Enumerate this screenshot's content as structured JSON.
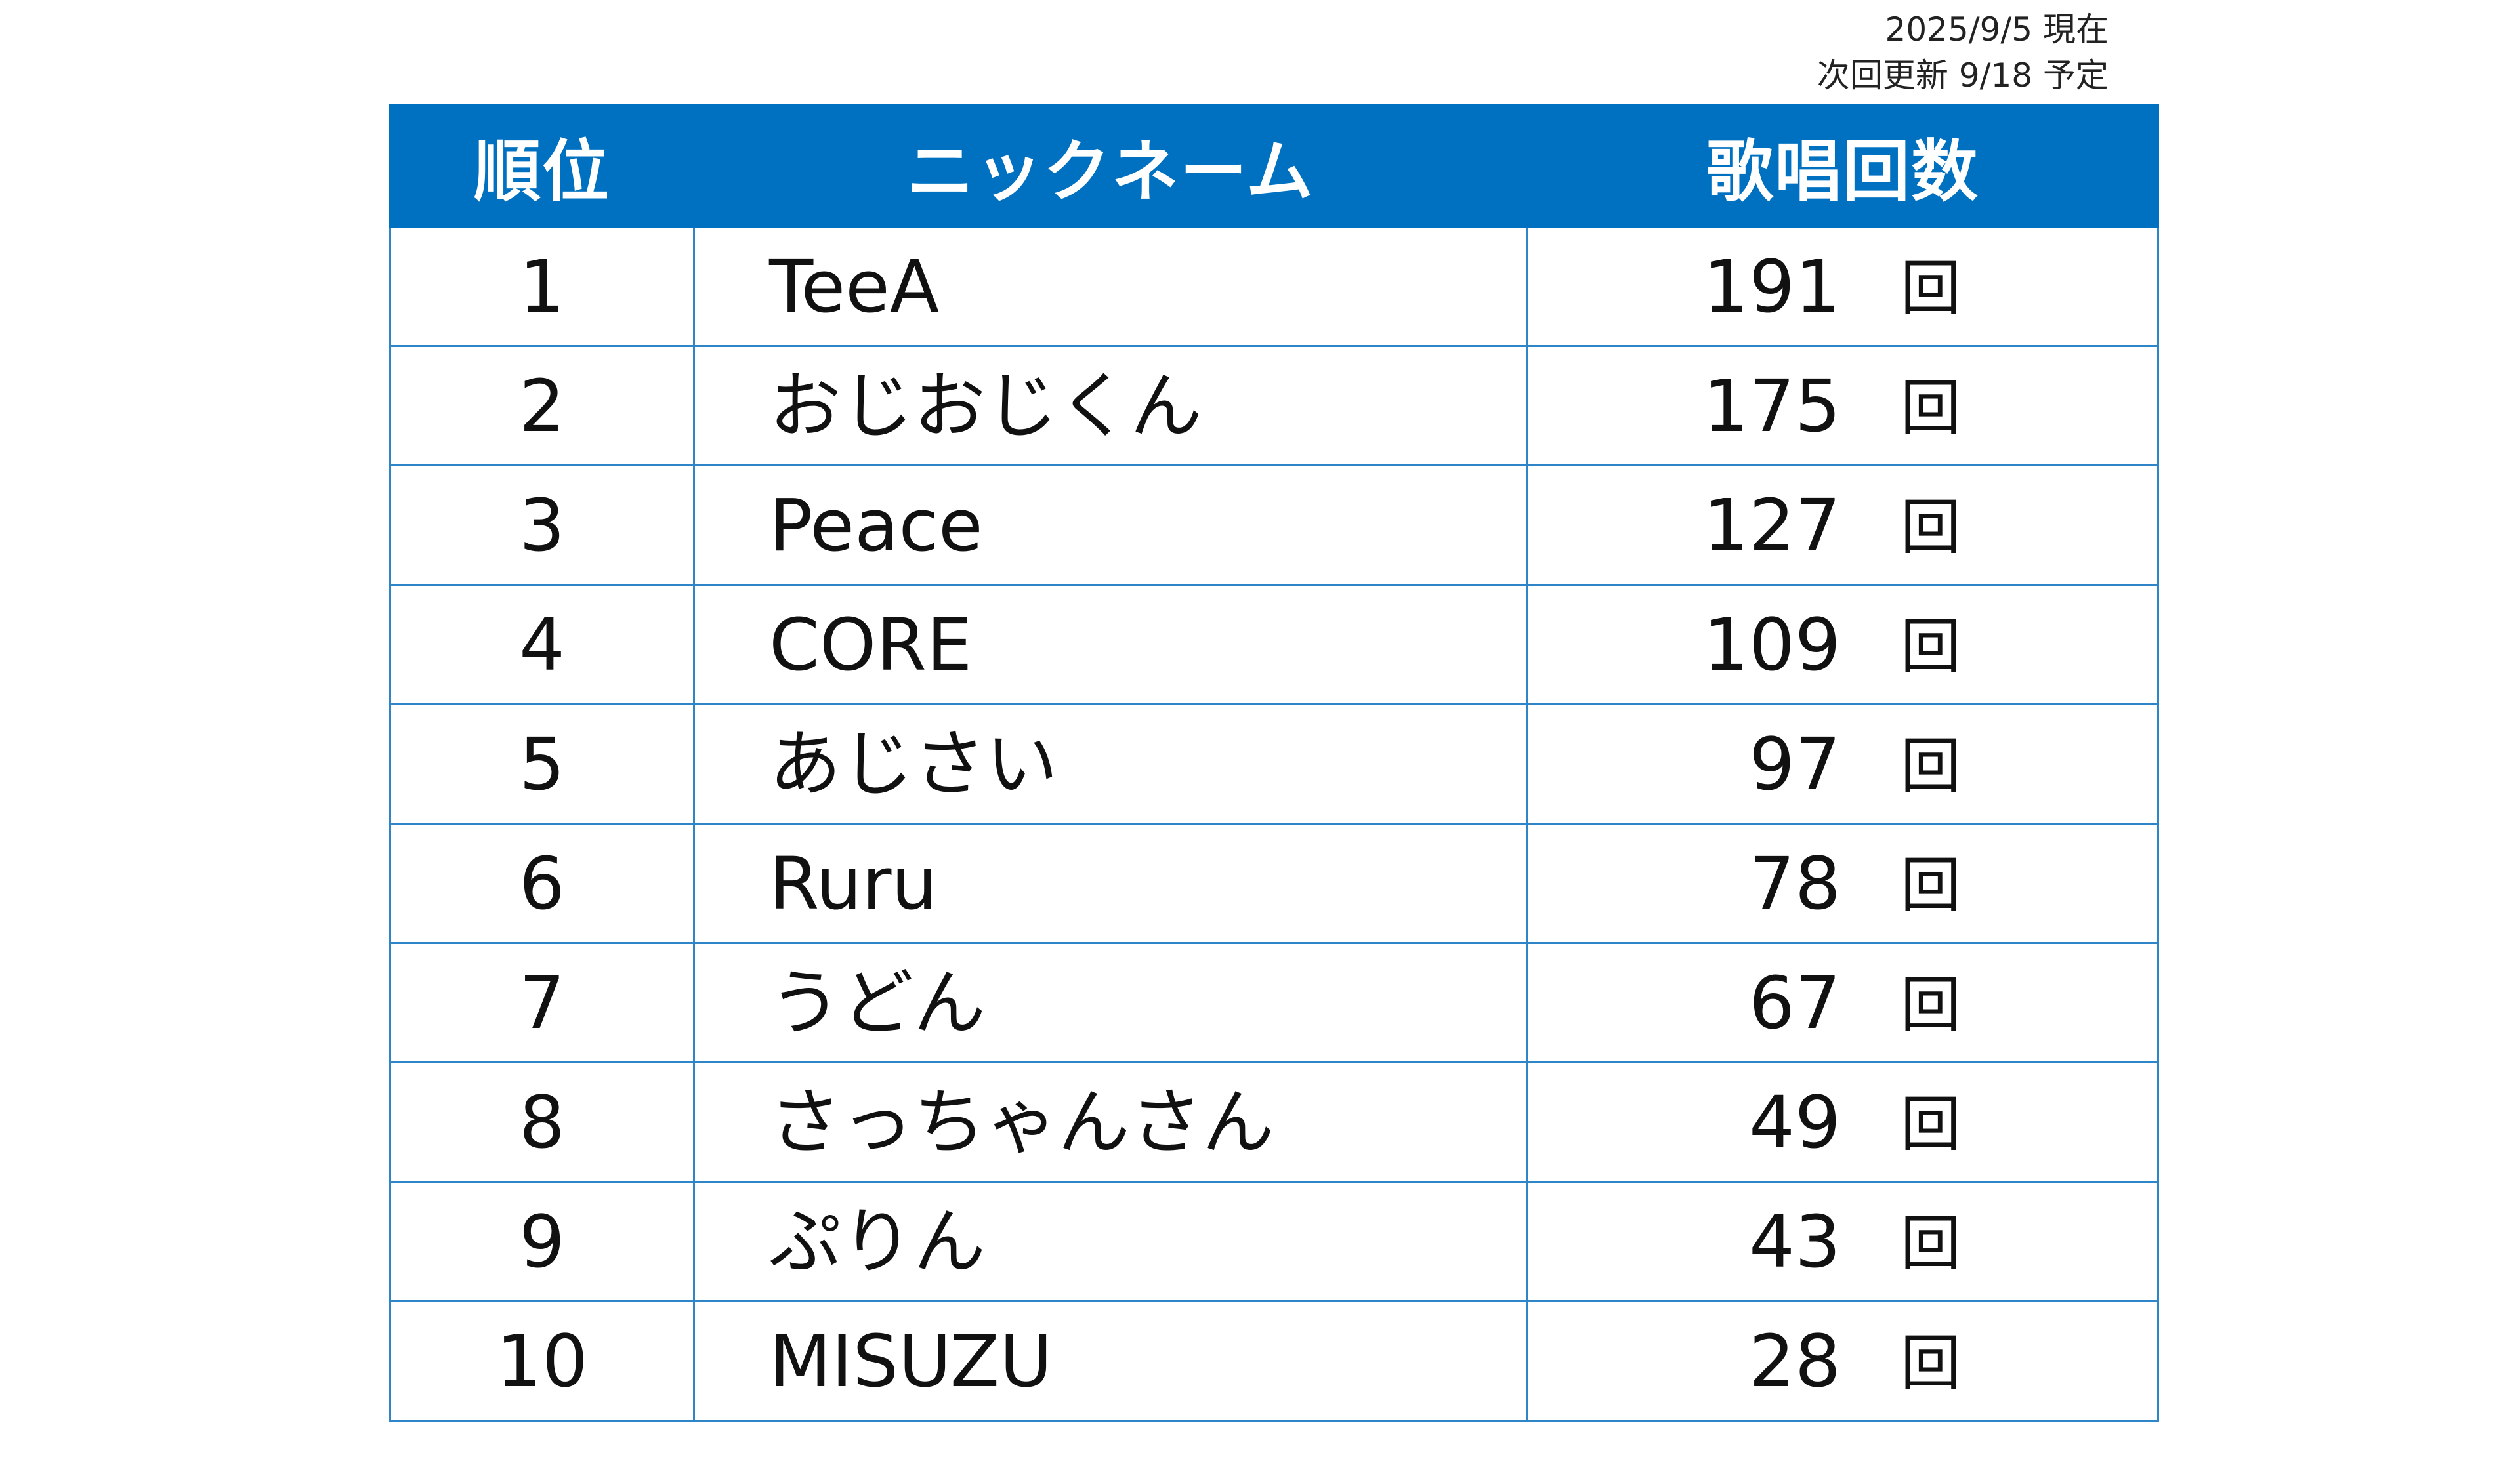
{
  "meta": {
    "date_line": "2025/9/5 現在",
    "next_update_line": "次回更新 9/18 予定"
  },
  "table": {
    "headers": {
      "rank": "順位",
      "nickname": "ニックネーム",
      "count": "歌唱回数"
    },
    "unit": "回",
    "rows": [
      {
        "rank": "1",
        "nickname": "TeeA",
        "count": "191"
      },
      {
        "rank": "2",
        "nickname": "おじおじくん",
        "count": "175"
      },
      {
        "rank": "3",
        "nickname": "Peace",
        "count": "127"
      },
      {
        "rank": "4",
        "nickname": "CORE",
        "count": "109"
      },
      {
        "rank": "5",
        "nickname": "あじさい",
        "count": "97"
      },
      {
        "rank": "6",
        "nickname": "Ruru",
        "count": "78"
      },
      {
        "rank": "7",
        "nickname": "うどん",
        "count": "67"
      },
      {
        "rank": "8",
        "nickname": "さっちゃんさん",
        "count": "49"
      },
      {
        "rank": "9",
        "nickname": "ぷりん",
        "count": "43"
      },
      {
        "rank": "10",
        "nickname": "MISUZU",
        "count": "28"
      }
    ]
  },
  "colors": {
    "header_bg": "#0070c0",
    "grid": "#2e86c9"
  }
}
